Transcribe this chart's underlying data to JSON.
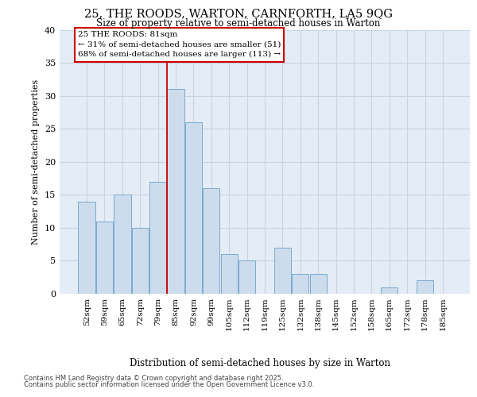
{
  "title1": "25, THE ROODS, WARTON, CARNFORTH, LA5 9QG",
  "title2": "Size of property relative to semi-detached houses in Warton",
  "xlabel": "Distribution of semi-detached houses by size in Warton",
  "ylabel": "Number of semi-detached properties",
  "categories": [
    "52sqm",
    "59sqm",
    "65sqm",
    "72sqm",
    "79sqm",
    "85sqm",
    "92sqm",
    "99sqm",
    "105sqm",
    "112sqm",
    "119sqm",
    "125sqm",
    "132sqm",
    "138sqm",
    "145sqm",
    "152sqm",
    "158sqm",
    "165sqm",
    "172sqm",
    "178sqm",
    "185sqm"
  ],
  "values": [
    14,
    11,
    15,
    10,
    17,
    31,
    26,
    16,
    6,
    5,
    0,
    7,
    3,
    3,
    0,
    0,
    0,
    1,
    0,
    2,
    0
  ],
  "bar_color": "#cddcec",
  "bar_edge_color": "#7aaace",
  "vline_x": 4.5,
  "vline_color": "#cc0000",
  "annotation_line1": "25 THE ROODS: 81sqm",
  "annotation_line2": "← 31% of semi-detached houses are smaller (51)",
  "annotation_line3": "68% of semi-detached houses are larger (113) →",
  "annotation_box_edgecolor": "#cc0000",
  "ylim": [
    0,
    40
  ],
  "yticks": [
    0,
    5,
    10,
    15,
    20,
    25,
    30,
    35,
    40
  ],
  "grid_color": "#c8d4e4",
  "background_color": "#e4ecf5",
  "footer1": "Contains HM Land Registry data © Crown copyright and database right 2025.",
  "footer2": "Contains public sector information licensed under the Open Government Licence v3.0."
}
